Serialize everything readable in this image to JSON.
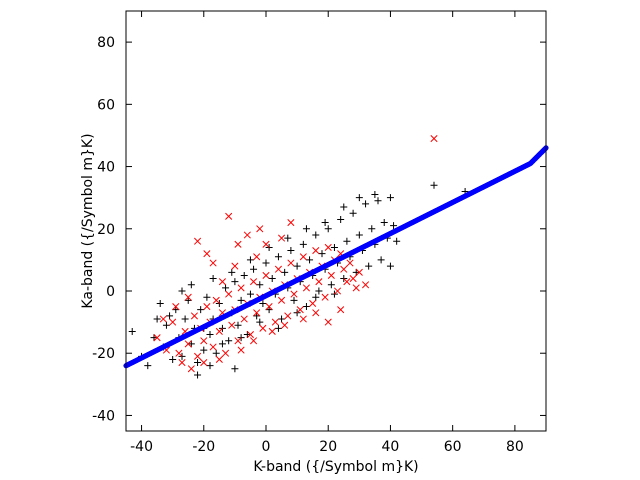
{
  "chart_data": {
    "type": "scatter",
    "title": "",
    "xlabel": "K-band ({/Symbol m}K)",
    "ylabel": "Ka-band ({/Symbol m}K)",
    "xlim": [
      -45,
      90
    ],
    "ylim": [
      -45,
      90
    ],
    "xticks": [
      -40,
      -20,
      0,
      20,
      40,
      60,
      80
    ],
    "yticks": [
      -40,
      -20,
      0,
      20,
      40,
      60,
      80
    ],
    "xtick_labels": [
      "-40",
      "-20",
      "0",
      "20",
      "40",
      "60",
      "80"
    ],
    "ytick_labels": [
      "-40",
      "-20",
      "0",
      "20",
      "40",
      "60",
      "80"
    ],
    "grid": false,
    "legend": "none",
    "series": [
      {
        "marker": "plus",
        "color": "#000000",
        "points": [
          [
            -43,
            -13
          ],
          [
            -40,
            -21
          ],
          [
            -38,
            -24
          ],
          [
            -36,
            -15
          ],
          [
            -35,
            -9
          ],
          [
            -33,
            -18
          ],
          [
            -32,
            -11
          ],
          [
            -30,
            -22
          ],
          [
            -29,
            -6
          ],
          [
            -28,
            -15
          ],
          [
            -27,
            -21
          ],
          [
            -26,
            -9
          ],
          [
            -25,
            -3
          ],
          [
            -24,
            -17
          ],
          [
            -23,
            -12
          ],
          [
            -22,
            -23
          ],
          [
            -21,
            -6
          ],
          [
            -20,
            -19
          ],
          [
            -19,
            -2
          ],
          [
            -18,
            -14
          ],
          [
            -17,
            -9
          ],
          [
            -16,
            -20
          ],
          [
            -15,
            -4
          ],
          [
            -14,
            -12
          ],
          [
            -13,
            1
          ],
          [
            -12,
            -16
          ],
          [
            -11,
            -7
          ],
          [
            -10,
            3
          ],
          [
            -9,
            -11
          ],
          [
            -8,
            -3
          ],
          [
            -7,
            5
          ],
          [
            -6,
            -14
          ],
          [
            -5,
            -1
          ],
          [
            -4,
            7
          ],
          [
            -3,
            -8
          ],
          [
            -2,
            2
          ],
          [
            -1,
            -4
          ],
          [
            0,
            9
          ],
          [
            1,
            -6
          ],
          [
            2,
            4
          ],
          [
            3,
            -1
          ],
          [
            4,
            11
          ],
          [
            5,
            -9
          ],
          [
            6,
            6
          ],
          [
            7,
            1
          ],
          [
            8,
            13
          ],
          [
            9,
            -3
          ],
          [
            10,
            8
          ],
          [
            11,
            3
          ],
          [
            12,
            15
          ],
          [
            13,
            -5
          ],
          [
            14,
            10
          ],
          [
            15,
            5
          ],
          [
            16,
            18
          ],
          [
            17,
            0
          ],
          [
            18,
            12
          ],
          [
            19,
            7
          ],
          [
            20,
            20
          ],
          [
            21,
            2
          ],
          [
            22,
            14
          ],
          [
            23,
            9
          ],
          [
            24,
            23
          ],
          [
            25,
            4
          ],
          [
            26,
            16
          ],
          [
            27,
            11
          ],
          [
            28,
            25
          ],
          [
            29,
            6
          ],
          [
            30,
            18
          ],
          [
            31,
            13
          ],
          [
            32,
            28
          ],
          [
            33,
            8
          ],
          [
            34,
            20
          ],
          [
            35,
            15
          ],
          [
            36,
            29
          ],
          [
            37,
            10
          ],
          [
            38,
            22
          ],
          [
            39,
            17
          ],
          [
            40,
            8
          ],
          [
            41,
            21
          ],
          [
            42,
            16
          ],
          [
            -34,
            -4
          ],
          [
            -31,
            -8
          ],
          [
            -27,
            0
          ],
          [
            -24,
            2
          ],
          [
            -20,
            -12
          ],
          [
            -17,
            4
          ],
          [
            -14,
            -17
          ],
          [
            -11,
            6
          ],
          [
            -8,
            -15
          ],
          [
            -5,
            10
          ],
          [
            -2,
            -10
          ],
          [
            1,
            14
          ],
          [
            4,
            -12
          ],
          [
            7,
            17
          ],
          [
            10,
            -7
          ],
          [
            13,
            20
          ],
          [
            16,
            -2
          ],
          [
            19,
            22
          ],
          [
            22,
            -1
          ],
          [
            25,
            27
          ],
          [
            54,
            34
          ],
          [
            64,
            32
          ],
          [
            30,
            30
          ],
          [
            35,
            31
          ],
          [
            40,
            30
          ],
          [
            -22,
            -27
          ],
          [
            -18,
            -24
          ],
          [
            -10,
            -25
          ]
        ]
      },
      {
        "marker": "cross",
        "color": "#ff0000",
        "points": [
          [
            -35,
            -15
          ],
          [
            -32,
            -19
          ],
          [
            -30,
            -10
          ],
          [
            -28,
            -20
          ],
          [
            -26,
            -13
          ],
          [
            -25,
            -17
          ],
          [
            -23,
            -8
          ],
          [
            -22,
            -21
          ],
          [
            -21,
            -12
          ],
          [
            -20,
            -16
          ],
          [
            -19,
            -5
          ],
          [
            -18,
            -10
          ],
          [
            -17,
            -18
          ],
          [
            -16,
            -3
          ],
          [
            -15,
            -13
          ],
          [
            -14,
            -7
          ],
          [
            -13,
            -20
          ],
          [
            -12,
            -1
          ],
          [
            -11,
            -11
          ],
          [
            -10,
            -6
          ],
          [
            -9,
            -16
          ],
          [
            -8,
            1
          ],
          [
            -7,
            -9
          ],
          [
            -6,
            -4
          ],
          [
            -5,
            -14
          ],
          [
            -4,
            3
          ],
          [
            -3,
            -7
          ],
          [
            -2,
            -2
          ],
          [
            -1,
            -12
          ],
          [
            0,
            5
          ],
          [
            1,
            -5
          ],
          [
            2,
            0
          ],
          [
            3,
            -10
          ],
          [
            4,
            7
          ],
          [
            5,
            -3
          ],
          [
            6,
            2
          ],
          [
            7,
            -8
          ],
          [
            8,
            9
          ],
          [
            9,
            -1
          ],
          [
            10,
            4
          ],
          [
            11,
            -6
          ],
          [
            12,
            11
          ],
          [
            13,
            1
          ],
          [
            14,
            6
          ],
          [
            15,
            -4
          ],
          [
            16,
            13
          ],
          [
            17,
            3
          ],
          [
            18,
            8
          ],
          [
            19,
            -2
          ],
          [
            20,
            14
          ],
          [
            21,
            5
          ],
          [
            22,
            10
          ],
          [
            23,
            0
          ],
          [
            24,
            12
          ],
          [
            25,
            7
          ],
          [
            26,
            3
          ],
          [
            27,
            9
          ],
          [
            28,
            4
          ],
          [
            30,
            6
          ],
          [
            32,
            2
          ],
          [
            -22,
            16
          ],
          [
            -19,
            12
          ],
          [
            -12,
            24
          ],
          [
            -9,
            15
          ],
          [
            -6,
            18
          ],
          [
            -3,
            11
          ],
          [
            -17,
            9
          ],
          [
            -25,
            -2
          ],
          [
            -29,
            -5
          ],
          [
            -33,
            -9
          ],
          [
            -14,
            3
          ],
          [
            -10,
            8
          ],
          [
            0,
            15
          ],
          [
            5,
            17
          ],
          [
            -2,
            20
          ],
          [
            8,
            22
          ],
          [
            -8,
            -19
          ],
          [
            -4,
            -16
          ],
          [
            2,
            -13
          ],
          [
            6,
            -11
          ],
          [
            12,
            -9
          ],
          [
            16,
            -7
          ],
          [
            20,
            -10
          ],
          [
            24,
            -6
          ],
          [
            -27,
            -23
          ],
          [
            -24,
            -25
          ],
          [
            -20,
            -23
          ],
          [
            -15,
            -22
          ],
          [
            54,
            49
          ],
          [
            29,
            1
          ]
        ]
      },
      {
        "marker": "dot",
        "color": "#0000ff",
        "x": [
          -45,
          -40,
          -35,
          -30,
          -25,
          -20,
          -15,
          -10,
          -5,
          0,
          5,
          10,
          15,
          20,
          25,
          30,
          35,
          40,
          45,
          50,
          55,
          60,
          65,
          70,
          75,
          80,
          85,
          90
        ],
        "y": [
          -24,
          -21.5,
          -19,
          -16.5,
          -14,
          -11.5,
          -9,
          -6.5,
          -4,
          -1.5,
          1,
          3.5,
          6,
          8.5,
          11,
          13.5,
          16,
          18.5,
          21,
          23.5,
          26,
          28.5,
          31,
          33.5,
          36,
          38.5,
          41,
          46
        ]
      }
    ]
  }
}
